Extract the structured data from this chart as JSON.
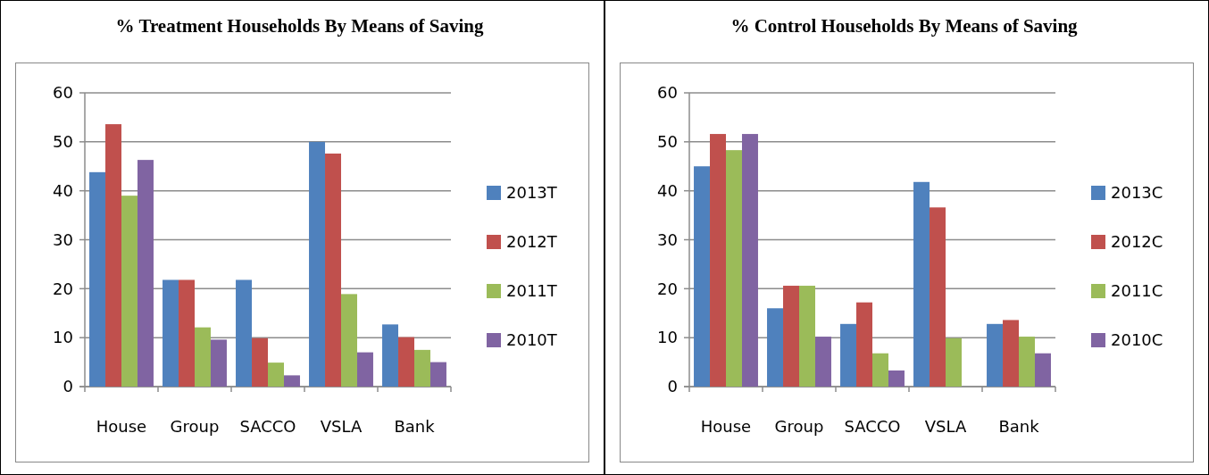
{
  "chart_data": [
    {
      "type": "bar",
      "title": "% Treatment Households By Means of Saving",
      "categories": [
        "House",
        "Group",
        "SACCO",
        "VSLA",
        "Bank"
      ],
      "series": [
        {
          "name": "2013T",
          "color": "#4f81bd",
          "values": [
            43.8,
            21.8,
            21.8,
            50.0,
            12.7
          ]
        },
        {
          "name": "2012T",
          "color": "#c0504d",
          "values": [
            53.6,
            21.8,
            9.9,
            47.6,
            10.1
          ]
        },
        {
          "name": "2011T",
          "color": "#9bbb59",
          "values": [
            39.0,
            12.1,
            4.9,
            18.9,
            7.5
          ]
        },
        {
          "name": "2010T",
          "color": "#8064a2",
          "values": [
            46.3,
            9.6,
            2.3,
            7.0,
            5.0
          ]
        }
      ],
      "ylim": [
        0,
        60
      ],
      "yticks": [
        0,
        10,
        20,
        30,
        40,
        50,
        60
      ],
      "grid": "y",
      "legend": "right"
    },
    {
      "type": "bar",
      "title": "% Control Households By Means of Saving",
      "categories": [
        "House",
        "Group",
        "SACCO",
        "VSLA",
        "Bank"
      ],
      "series": [
        {
          "name": "2013C",
          "color": "#4f81bd",
          "values": [
            45.0,
            16.0,
            12.8,
            41.8,
            12.8
          ]
        },
        {
          "name": "2012C",
          "color": "#c0504d",
          "values": [
            51.6,
            20.6,
            17.2,
            36.6,
            13.6
          ]
        },
        {
          "name": "2011C",
          "color": "#9bbb59",
          "values": [
            48.3,
            20.6,
            6.8,
            9.9,
            10.2
          ]
        },
        {
          "name": "2010C",
          "color": "#8064a2",
          "values": [
            51.6,
            10.2,
            3.3,
            null,
            6.8
          ]
        }
      ],
      "ylim": [
        0,
        60
      ],
      "yticks": [
        0,
        10,
        20,
        30,
        40,
        50,
        60
      ],
      "grid": "y",
      "legend": "right"
    }
  ]
}
